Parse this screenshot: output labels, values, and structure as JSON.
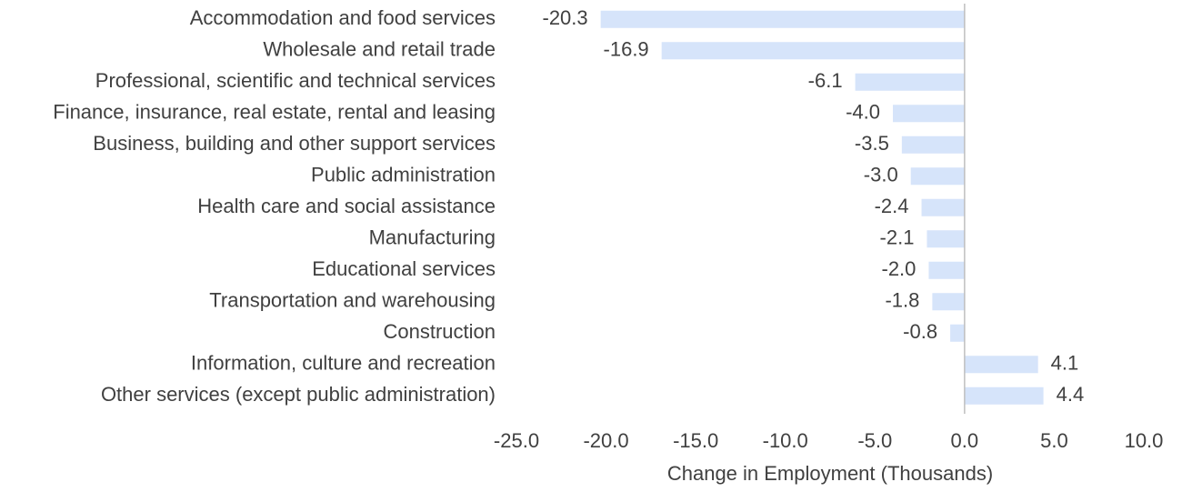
{
  "chart_data": {
    "type": "bar",
    "orientation": "horizontal",
    "categories": [
      "Accommodation and food services",
      "Wholesale and retail trade",
      "Professional, scientific and technical services",
      "Finance, insurance, real estate, rental and leasing",
      "Business, building and other support services",
      "Public administration",
      "Health care and social assistance",
      "Manufacturing",
      "Educational services",
      "Transportation and warehousing",
      "Construction",
      "Information, culture and recreation",
      "Other services (except public administration)"
    ],
    "values": [
      -20.3,
      -16.9,
      -6.1,
      -4.0,
      -3.5,
      -3.0,
      -2.4,
      -2.1,
      -2.0,
      -1.8,
      -0.8,
      4.1,
      4.4
    ],
    "value_labels": [
      "-20.3",
      "-16.9",
      "-6.1",
      "-4.0",
      "-3.5",
      "-3.0",
      "-2.4",
      "-2.1",
      "-2.0",
      "-1.8",
      "-0.8",
      "4.1",
      "4.4"
    ],
    "xlim": [
      -25,
      10
    ],
    "xticks": [
      -25,
      -20,
      -15,
      -10,
      -5,
      0,
      5,
      10
    ],
    "xtick_labels": [
      "-25.0",
      "-20.0",
      "-15.0",
      "-10.0",
      "-5.0",
      "0.0",
      "5.0",
      "10.0"
    ],
    "xlabel": "Change in Employment (Thousands)",
    "ylabel": "",
    "title": "",
    "grid": false,
    "legend": "none",
    "bar_color": "#d6e4fa",
    "axis_color": "#bfbfbf",
    "text_color": "#404040"
  }
}
